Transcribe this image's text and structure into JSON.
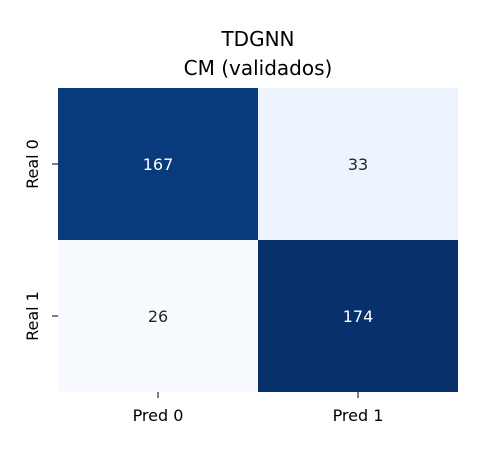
{
  "chart_data": {
    "type": "heatmap",
    "title": [
      "TDGNN",
      "CM (validados)"
    ],
    "x_categories": [
      "Pred 0",
      "Pred 1"
    ],
    "y_categories": [
      "Real 0",
      "Real 1"
    ],
    "values": [
      [
        167,
        33
      ],
      [
        26,
        174
      ]
    ],
    "value_labels": [
      [
        "167",
        "33"
      ],
      [
        "26",
        "174"
      ]
    ],
    "color_scale": "Blues",
    "colorbar": false,
    "grid": false,
    "cell_colors": [
      [
        "#083b7c",
        "#edf4fd"
      ],
      [
        "#f7fbff",
        "#08306b"
      ]
    ],
    "label_colors": [
      [
        "#ffffff",
        "#262626"
      ],
      [
        "#262626",
        "#ffffff"
      ]
    ]
  }
}
